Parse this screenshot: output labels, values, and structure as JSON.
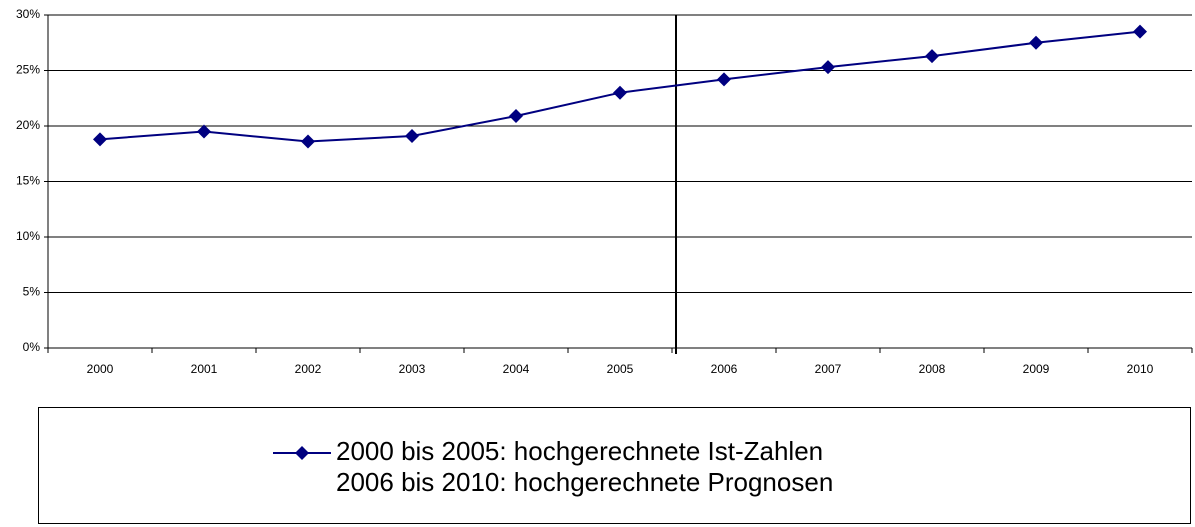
{
  "chart_data": {
    "type": "line",
    "categories": [
      "2000",
      "2001",
      "2002",
      "2003",
      "2004",
      "2005",
      "2006",
      "2007",
      "2008",
      "2009",
      "2010"
    ],
    "series": [
      {
        "name": "2000 bis 2005: hochgerechnete Ist-Zahlen\n2006 bis 2010: hochgerechnete Prognosen",
        "color": "#000080",
        "values": [
          18.8,
          19.5,
          18.6,
          19.1,
          20.9,
          23.0,
          24.2,
          25.3,
          26.3,
          27.5,
          28.5
        ]
      }
    ],
    "ylim": [
      0,
      30
    ],
    "yticks": [
      {
        "value": 0,
        "label": "0%"
      },
      {
        "value": 5,
        "label": "5%"
      },
      {
        "value": 10,
        "label": "10%"
      },
      {
        "value": 15,
        "label": "15%"
      },
      {
        "value": 20,
        "label": "20%"
      },
      {
        "value": 25,
        "label": "25%"
      },
      {
        "value": 30,
        "label": "30%"
      }
    ],
    "grid": true
  }
}
